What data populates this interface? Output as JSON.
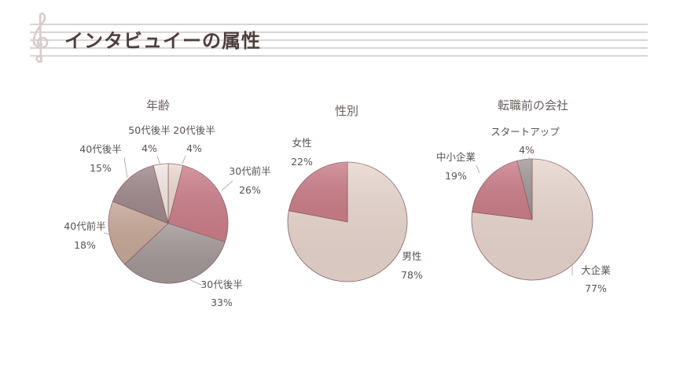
{
  "header": {
    "title": "インタビュイーの属性"
  },
  "colors": {
    "staff": "#ddd4d4",
    "title": "#4d3e3e",
    "text": "#5a5252"
  },
  "chart_data": [
    {
      "type": "pie",
      "title": "年齢",
      "slices": [
        {
          "label": "20代後半",
          "value": 4,
          "pct": "4%",
          "color": "#ead8d0"
        },
        {
          "label": "30代前半",
          "value": 26,
          "pct": "26%",
          "color": "#cc7f8a"
        },
        {
          "label": "30代後半",
          "value": 33,
          "pct": "33%",
          "color": "#a39898"
        },
        {
          "label": "40代前半",
          "value": 18,
          "pct": "18%",
          "color": "#c7a898"
        },
        {
          "label": "40代後半",
          "value": 15,
          "pct": "15%",
          "color": "#a08a8c"
        },
        {
          "label": "50代後半",
          "value": 4,
          "pct": "4%",
          "color": "#f2e8e4"
        }
      ]
    },
    {
      "type": "pie",
      "title": "性別",
      "slices": [
        {
          "label": "男性",
          "value": 78,
          "pct": "78%",
          "color": "#e8d6ce"
        },
        {
          "label": "女性",
          "value": 22,
          "pct": "22%",
          "color": "#cc7f8a"
        }
      ]
    },
    {
      "type": "pie",
      "title": "転職前の会社",
      "slices": [
        {
          "label": "大企業",
          "value": 77,
          "pct": "77%",
          "color": "#e8d6ce"
        },
        {
          "label": "中小企業",
          "value": 19,
          "pct": "19%",
          "color": "#cc7f8a"
        },
        {
          "label": "スタートアップ",
          "value": 4,
          "pct": "4%",
          "color": "#a39898"
        }
      ]
    }
  ]
}
